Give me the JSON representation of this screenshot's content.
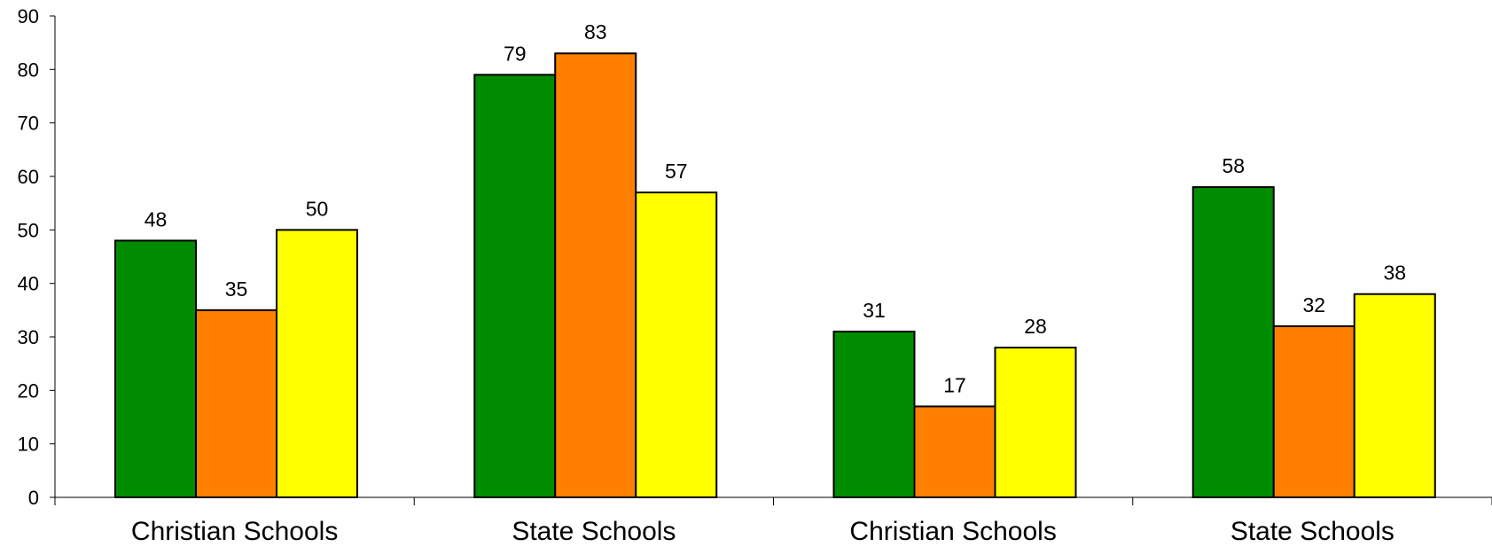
{
  "chart_data": {
    "type": "bar",
    "title": "",
    "xlabel": "",
    "ylabel": "",
    "ylim": [
      0,
      90
    ],
    "y_ticks": [
      0,
      10,
      20,
      30,
      40,
      50,
      60,
      70,
      80,
      90
    ],
    "grid": false,
    "legend": "none",
    "categories": [
      "Christian Schools",
      "State Schools",
      "Christian Schools",
      "State Schools"
    ],
    "series": [
      {
        "color": "#008C00",
        "values": [
          48,
          79,
          31,
          58
        ]
      },
      {
        "color": "#FF7F00",
        "values": [
          35,
          83,
          17,
          32
        ]
      },
      {
        "color": "#FFFF00",
        "values": [
          50,
          57,
          28,
          38
        ]
      }
    ]
  }
}
